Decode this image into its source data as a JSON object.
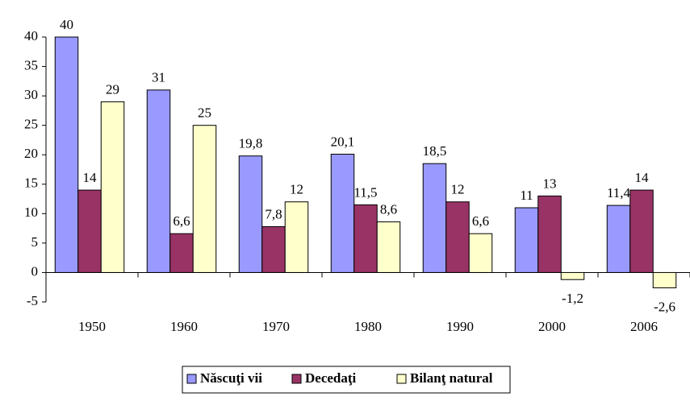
{
  "chart_data": {
    "type": "bar",
    "categories": [
      "1950",
      "1960",
      "1970",
      "1980",
      "1990",
      "2000",
      "2006"
    ],
    "series": [
      {
        "name": "Născuţi vii",
        "color": "#9999ff",
        "values": [
          40,
          31,
          19.8,
          20.1,
          18.5,
          11,
          11.4
        ],
        "value_labels": [
          "40",
          "31",
          "19,8",
          "20,1",
          "18,5",
          "11",
          "11,4"
        ]
      },
      {
        "name": "Decedaţi",
        "color": "#993366",
        "values": [
          14,
          6.6,
          7.8,
          11.5,
          12,
          13,
          14
        ],
        "value_labels": [
          "14",
          "6,6",
          "7,8",
          "11,5",
          "12",
          "13",
          "14"
        ]
      },
      {
        "name": "Bilanţ natural",
        "color": "#ffffcc",
        "values": [
          29,
          25,
          12,
          8.6,
          6.6,
          -1.2,
          -2.6
        ],
        "value_labels": [
          "29",
          "25",
          "12",
          "8,6",
          "6,6",
          "-1,2",
          "-2,6"
        ]
      }
    ],
    "ylim": [
      -5,
      40
    ],
    "yticks": [
      -5,
      0,
      5,
      10,
      15,
      20,
      25,
      30,
      35,
      40
    ],
    "legend": "bottom"
  }
}
